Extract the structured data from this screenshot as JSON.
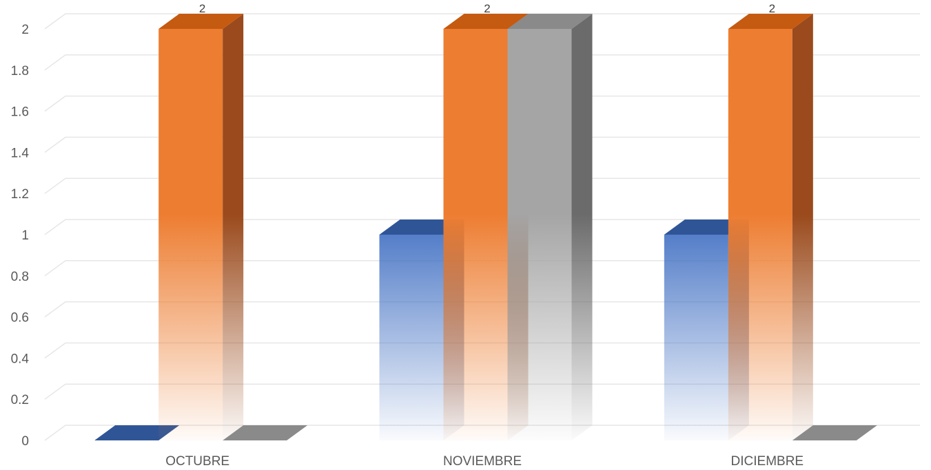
{
  "chart_data": {
    "type": "bar",
    "style": "3d-clustered-column",
    "categories": [
      "OCTUBRE",
      "NOVIEMBRE",
      "DICIEMBRE"
    ],
    "series": [
      {
        "values": [
          0,
          1,
          1
        ],
        "color": "#4472C4",
        "side_color": "#2E4F8C",
        "top_color": "#2F5597"
      },
      {
        "values": [
          2,
          2,
          2
        ],
        "color": "#ED7D31",
        "side_color": "#9A4A1C",
        "top_color": "#C55A11"
      },
      {
        "values": [
          0,
          2,
          0
        ],
        "color": "#A5A5A5",
        "side_color": "#6B6B6B",
        "top_color": "#8A8A8A"
      }
    ],
    "data_labels": {
      "series_index": 1,
      "values": [
        "2",
        "2",
        "2"
      ]
    },
    "ylim": [
      0,
      2
    ],
    "yticks": [
      "0",
      "0.2",
      "0.4",
      "0.6",
      "0.8",
      "1",
      "1.2",
      "1.4",
      "1.6",
      "1.8",
      "2"
    ],
    "grid": true,
    "legend": "none",
    "title": "",
    "xlabel": "",
    "ylabel": ""
  }
}
